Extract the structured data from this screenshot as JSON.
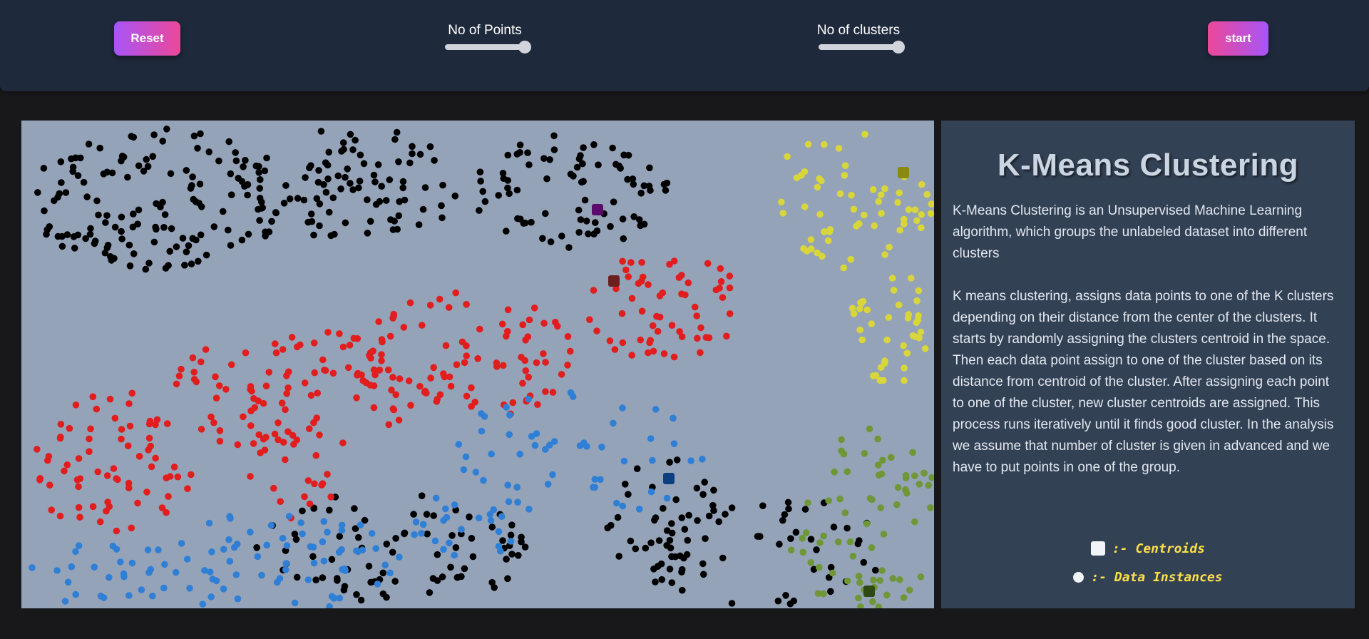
{
  "toolbar": {
    "reset_label": "Reset",
    "start_label": "start",
    "points_label": "No of Points",
    "clusters_label": "No of clusters",
    "points_level": 1.0,
    "clusters_level": 1.0,
    "button_gradient": [
      "#a855f7",
      "#ec4899"
    ]
  },
  "plot": {
    "background": "#94a3b8",
    "clusters": [
      {
        "color": "#000000",
        "centroid_color": "#5b0a6b"
      },
      {
        "color": "#e11d1d",
        "centroid_color": "#6b1f1f"
      },
      {
        "color": "#2f7fd6",
        "centroid_color": "#0b3f80"
      },
      {
        "color": "#d9d63a",
        "centroid_color": "#8a8a10"
      },
      {
        "color": "#6f9637",
        "centroid_color": "#2e4a12"
      }
    ]
  },
  "info": {
    "title": "K-Means Clustering",
    "paragraph1": "K-Means Clustering is an Unsupervised Machine Learning algorithm, which groups the unlabeled dataset into different clusters",
    "paragraph2": "K means clustering, assigns data points to one of the K clusters depending on their distance from the center of the clusters. It starts by randomly assigning the clusters centroid in the space. Then each data point assign to one of the cluster based on its distance from centroid of the cluster. After assigning each point to one of the cluster, new cluster centroids are assigned. This process runs iteratively until it finds good cluster. In the analysis we assume that number of cluster is given in advanced and we have to put points in one of the group.",
    "legend_centroids": ":- Centroids",
    "legend_instances": ":- Data Instances"
  }
}
